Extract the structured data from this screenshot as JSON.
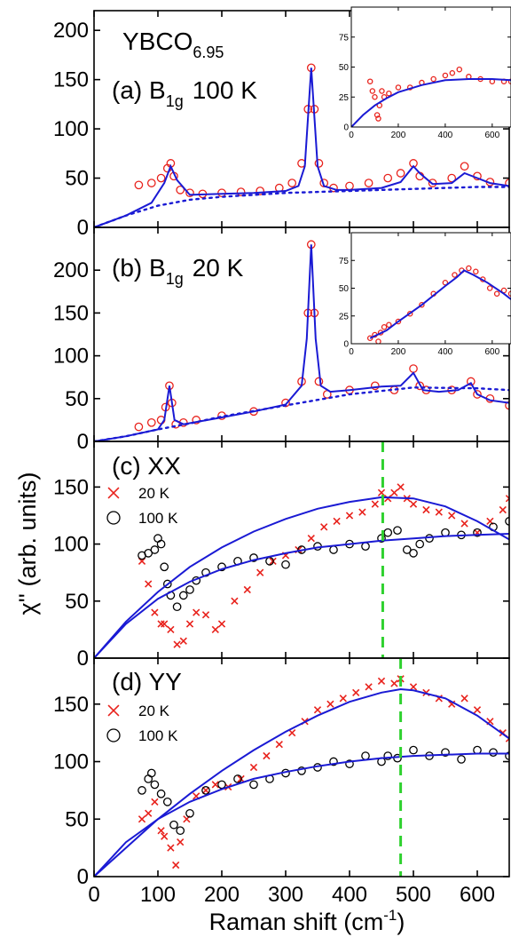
{
  "figure": {
    "ylabel": "χ'' (arb. units)",
    "xlabel_main": "Raman shift (cm",
    "xlabel_sup": "-1",
    "xlabel_close": ")",
    "compound": "YBCO",
    "compound_sub": "6.95"
  },
  "chart_data": [
    {
      "id": "a",
      "type": "line",
      "label_prefix": "(a) B",
      "label_sub": "1g",
      "label_suffix": "100 K",
      "xlim": [
        0,
        650
      ],
      "ylim": [
        0,
        220
      ],
      "xticks": [
        0,
        100,
        200,
        300,
        400,
        500,
        600
      ],
      "yticks": [
        0,
        50,
        100,
        150,
        200
      ],
      "series": [
        {
          "role": "data",
          "style": "open-circle",
          "color": "#e8221c",
          "x": [
            70,
            90,
            105,
            115,
            120,
            125,
            135,
            150,
            170,
            200,
            230,
            260,
            290,
            310,
            325,
            335,
            340,
            345,
            352,
            360,
            375,
            400,
            430,
            460,
            480,
            500,
            510,
            530,
            560,
            580,
            600,
            620,
            650
          ],
          "y": [
            43,
            45,
            50,
            60,
            65,
            52,
            38,
            35,
            34,
            35,
            36,
            37,
            40,
            45,
            65,
            120,
            162,
            120,
            65,
            45,
            40,
            42,
            45,
            50,
            55,
            65,
            52,
            45,
            50,
            62,
            52,
            46,
            45
          ]
        },
        {
          "role": "fit",
          "style": "solid",
          "color": "#1a1ad4",
          "x": [
            0,
            50,
            90,
            110,
            120,
            130,
            150,
            200,
            250,
            300,
            320,
            330,
            340,
            350,
            360,
            380,
            400,
            450,
            480,
            500,
            510,
            530,
            560,
            580,
            600,
            620,
            650
          ],
          "y": [
            0,
            12,
            25,
            45,
            62,
            48,
            33,
            34,
            35,
            37,
            42,
            62,
            162,
            62,
            42,
            38,
            38,
            40,
            46,
            62,
            55,
            44,
            45,
            55,
            50,
            45,
            42
          ]
        },
        {
          "role": "background",
          "style": "dotted",
          "color": "#1a1ad4",
          "x": [
            0,
            50,
            100,
            150,
            200,
            300,
            400,
            500,
            600,
            650
          ],
          "y": [
            0,
            12,
            22,
            28,
            31,
            35,
            37,
            39,
            41,
            41
          ]
        }
      ],
      "inset": {
        "xlim": [
          0,
          680
        ],
        "ylim": [
          0,
          100
        ],
        "xticks": [
          0,
          200,
          400,
          600
        ],
        "yticks": [
          0,
          25,
          50,
          75
        ],
        "series": [
          {
            "role": "data",
            "style": "open-circle",
            "color": "#e8221c",
            "x": [
              80,
              90,
              100,
              110,
              115,
              120,
              130,
              140,
              160,
              200,
              250,
              300,
              350,
              400,
              430,
              460,
              500,
              550,
              600,
              650,
              680
            ],
            "y": [
              38,
              30,
              25,
              10,
              7,
              18,
              30,
              25,
              28,
              33,
              33,
              37,
              40,
              43,
              45,
              48,
              42,
              40,
              38,
              38,
              38
            ]
          },
          {
            "role": "fit",
            "style": "solid",
            "color": "#1a1ad4",
            "x": [
              0,
              50,
              100,
              150,
              200,
              300,
              400,
              500,
              600,
              680
            ],
            "y": [
              0,
              10,
              18,
              24,
              29,
              35,
              39,
              40,
              40,
              39
            ]
          }
        ]
      }
    },
    {
      "id": "b",
      "type": "line",
      "label_prefix": "(b) B",
      "label_sub": "1g",
      "label_suffix": "20 K",
      "xlim": [
        0,
        650
      ],
      "ylim": [
        0,
        250
      ],
      "xticks": [
        0,
        100,
        200,
        300,
        400,
        500,
        600
      ],
      "yticks": [
        0,
        50,
        100,
        150,
        200
      ],
      "series": [
        {
          "role": "data",
          "style": "open-circle",
          "color": "#e8221c",
          "x": [
            70,
            90,
            105,
            112,
            118,
            122,
            128,
            140,
            160,
            200,
            250,
            300,
            325,
            335,
            340,
            345,
            352,
            365,
            400,
            440,
            470,
            500,
            510,
            520,
            560,
            590,
            600,
            620,
            650
          ],
          "y": [
            17,
            22,
            25,
            40,
            65,
            45,
            20,
            22,
            25,
            30,
            35,
            45,
            70,
            150,
            230,
            150,
            70,
            55,
            60,
            65,
            60,
            85,
            65,
            60,
            60,
            70,
            55,
            50,
            42
          ]
        },
        {
          "role": "fit",
          "style": "solid",
          "color": "#1a1ad4",
          "x": [
            0,
            50,
            100,
            110,
            118,
            126,
            140,
            200,
            250,
            300,
            325,
            333,
            340,
            347,
            355,
            370,
            400,
            450,
            480,
            500,
            515,
            540,
            570,
            590,
            600,
            620,
            650
          ],
          "y": [
            0,
            6,
            14,
            25,
            65,
            25,
            20,
            28,
            35,
            43,
            65,
            120,
            230,
            120,
            65,
            58,
            60,
            64,
            65,
            80,
            60,
            58,
            60,
            68,
            55,
            48,
            45
          ]
        },
        {
          "role": "background",
          "style": "dotted",
          "color": "#1a1ad4",
          "x": [
            0,
            50,
            100,
            150,
            200,
            300,
            400,
            500,
            600,
            650
          ],
          "y": [
            0,
            6,
            14,
            21,
            29,
            42,
            55,
            63,
            62,
            60
          ]
        }
      ],
      "inset": {
        "xlim": [
          0,
          680
        ],
        "ylim": [
          0,
          100
        ],
        "xticks": [
          0,
          200,
          400,
          600
        ],
        "yticks": [
          0,
          25,
          50,
          75
        ],
        "series": [
          {
            "role": "data",
            "style": "open-circle",
            "color": "#e8221c",
            "x": [
              80,
              100,
              115,
              125,
              140,
              160,
              200,
              250,
              300,
              350,
              400,
              440,
              470,
              500,
              530,
              560,
              590,
              620,
              650,
              680
            ],
            "y": [
              5,
              8,
              2,
              10,
              15,
              17,
              20,
              27,
              35,
              45,
              55,
              62,
              66,
              68,
              65,
              58,
              50,
              45,
              48,
              45
            ]
          },
          {
            "role": "fit",
            "style": "solid",
            "color": "#1a1ad4",
            "x": [
              80,
              150,
              200,
              300,
              400,
              450,
              480,
              520,
              580,
              650,
              680
            ],
            "y": [
              5,
              12,
              20,
              35,
              52,
              60,
              66,
              62,
              55,
              45,
              40
            ]
          }
        ]
      }
    },
    {
      "id": "c",
      "type": "line",
      "label": "(c) XX",
      "xlim": [
        0,
        650
      ],
      "ylim": [
        0,
        190
      ],
      "xticks": [
        0,
        100,
        200,
        300,
        400,
        500,
        600
      ],
      "yticks": [
        0,
        50,
        100,
        150
      ],
      "vline": 452,
      "legend": [
        {
          "name": "20 K",
          "marker": "x",
          "color": "#e8221c"
        },
        {
          "name": "100 K",
          "marker": "open-circle",
          "color": "#000000"
        }
      ],
      "series": [
        {
          "role": "data",
          "name": "20 K",
          "style": "x",
          "color": "#e8221c",
          "x": [
            75,
            85,
            95,
            105,
            110,
            120,
            130,
            140,
            150,
            160,
            175,
            190,
            200,
            220,
            240,
            260,
            280,
            300,
            320,
            340,
            360,
            380,
            400,
            420,
            440,
            450,
            460,
            470,
            480,
            490,
            500,
            520,
            540,
            560,
            580,
            600,
            620,
            640,
            650
          ],
          "y": [
            85,
            65,
            40,
            30,
            30,
            25,
            12,
            15,
            30,
            40,
            38,
            25,
            30,
            50,
            60,
            75,
            85,
            90,
            95,
            105,
            115,
            120,
            125,
            128,
            135,
            145,
            140,
            145,
            150,
            140,
            135,
            130,
            128,
            125,
            118,
            110,
            120,
            130,
            140
          ]
        },
        {
          "role": "data",
          "name": "100 K",
          "style": "open-circle",
          "color": "#000000",
          "x": [
            75,
            85,
            95,
            100,
            105,
            110,
            115,
            120,
            130,
            140,
            150,
            160,
            175,
            200,
            225,
            250,
            275,
            300,
            325,
            350,
            375,
            400,
            425,
            450,
            460,
            475,
            490,
            500,
            510,
            525,
            550,
            575,
            600,
            625,
            650
          ],
          "y": [
            90,
            92,
            95,
            105,
            100,
            80,
            65,
            55,
            45,
            55,
            60,
            68,
            75,
            80,
            85,
            88,
            85,
            82,
            95,
            98,
            95,
            100,
            98,
            105,
            110,
            112,
            95,
            92,
            100,
            105,
            110,
            108,
            110,
            115,
            120
          ]
        },
        {
          "role": "fit",
          "name": "20 K fit",
          "style": "solid",
          "color": "#1a1ad4",
          "x": [
            0,
            50,
            100,
            150,
            200,
            250,
            300,
            350,
            400,
            450,
            500,
            550,
            600,
            650
          ],
          "y": [
            0,
            32,
            58,
            80,
            97,
            111,
            122,
            131,
            137,
            141,
            140,
            133,
            120,
            104
          ]
        },
        {
          "role": "fit",
          "name": "100 K fit",
          "style": "solid",
          "color": "#1a1ad4",
          "x": [
            0,
            50,
            100,
            150,
            200,
            250,
            300,
            350,
            400,
            450,
            500,
            550,
            600,
            650
          ],
          "y": [
            0,
            30,
            52,
            67,
            78,
            86,
            92,
            97,
            100,
            103,
            105,
            107,
            108,
            109
          ]
        }
      ]
    },
    {
      "id": "d",
      "type": "line",
      "label": "(d) YY",
      "xlim": [
        0,
        650
      ],
      "ylim": [
        0,
        190
      ],
      "xticks": [
        0,
        100,
        200,
        300,
        400,
        500,
        600
      ],
      "yticks": [
        0,
        50,
        100,
        150
      ],
      "vline": 480,
      "legend": [
        {
          "name": "20 K",
          "marker": "x",
          "color": "#e8221c"
        },
        {
          "name": "100 K",
          "marker": "open-circle",
          "color": "#000000"
        }
      ],
      "series": [
        {
          "role": "data",
          "name": "20 K",
          "style": "x",
          "color": "#e8221c",
          "x": [
            75,
            85,
            95,
            105,
            110,
            120,
            128,
            135,
            145,
            160,
            175,
            190,
            210,
            230,
            250,
            270,
            290,
            310,
            330,
            350,
            370,
            390,
            410,
            430,
            450,
            470,
            480,
            500,
            520,
            540,
            560,
            580,
            600,
            620,
            640,
            650
          ],
          "y": [
            50,
            55,
            65,
            40,
            35,
            25,
            10,
            30,
            50,
            70,
            75,
            80,
            78,
            85,
            95,
            105,
            115,
            125,
            135,
            145,
            150,
            155,
            160,
            165,
            170,
            168,
            172,
            165,
            160,
            155,
            150,
            155,
            145,
            135,
            125,
            120
          ]
        },
        {
          "role": "data",
          "name": "100 K",
          "style": "open-circle",
          "color": "#000000",
          "x": [
            75,
            85,
            90,
            95,
            105,
            115,
            125,
            135,
            150,
            175,
            200,
            225,
            250,
            275,
            300,
            325,
            350,
            375,
            400,
            425,
            450,
            460,
            475,
            500,
            525,
            550,
            575,
            600,
            625,
            650
          ],
          "y": [
            75,
            85,
            90,
            80,
            72,
            65,
            45,
            40,
            55,
            75,
            80,
            85,
            80,
            85,
            90,
            92,
            95,
            100,
            98,
            105,
            100,
            105,
            103,
            110,
            105,
            108,
            102,
            110,
            108,
            105
          ]
        },
        {
          "role": "fit",
          "name": "20 K fit",
          "style": "solid",
          "color": "#1a1ad4",
          "x": [
            0,
            50,
            100,
            150,
            200,
            250,
            300,
            350,
            400,
            450,
            480,
            500,
            550,
            600,
            650
          ],
          "y": [
            0,
            25,
            50,
            72,
            92,
            110,
            126,
            140,
            152,
            160,
            163,
            162,
            155,
            140,
            120
          ]
        },
        {
          "role": "fit",
          "name": "100 K fit",
          "style": "solid",
          "color": "#1a1ad4",
          "x": [
            0,
            50,
            100,
            150,
            200,
            250,
            300,
            350,
            400,
            450,
            500,
            550,
            600,
            650
          ],
          "y": [
            0,
            30,
            50,
            65,
            76,
            85,
            91,
            96,
            100,
            103,
            105,
            106,
            107,
            107
          ]
        }
      ]
    }
  ]
}
